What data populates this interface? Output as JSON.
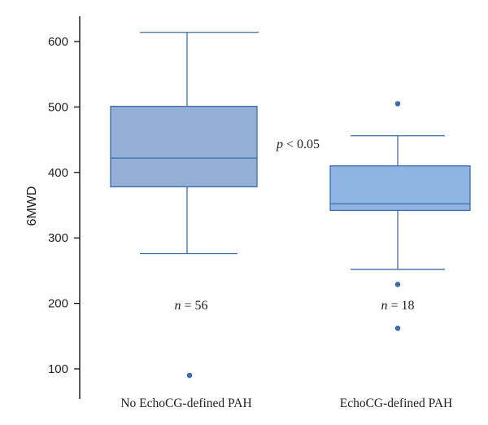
{
  "chart_data": {
    "type": "box",
    "ylabel": "6MWD",
    "y_ticks": [
      100,
      200,
      300,
      400,
      500,
      600
    ],
    "ylim": [
      50,
      660
    ],
    "boxes": [
      {
        "category": "No EchoCG-defined PAH",
        "min": 276,
        "q1": 378,
        "median": 422,
        "q3": 501,
        "max": 614,
        "outliers": [
          90
        ],
        "n_label": "n = 56",
        "color": "#93afd5"
      },
      {
        "category": "EchoCG-defined PAH",
        "min": 252,
        "q1": 342,
        "median": 352,
        "q3": 410,
        "max": 456,
        "outliers": [
          505,
          229,
          162
        ],
        "n_label": "n = 18",
        "color": "#8fb4e3"
      }
    ],
    "annotation": "p < 0.05"
  }
}
